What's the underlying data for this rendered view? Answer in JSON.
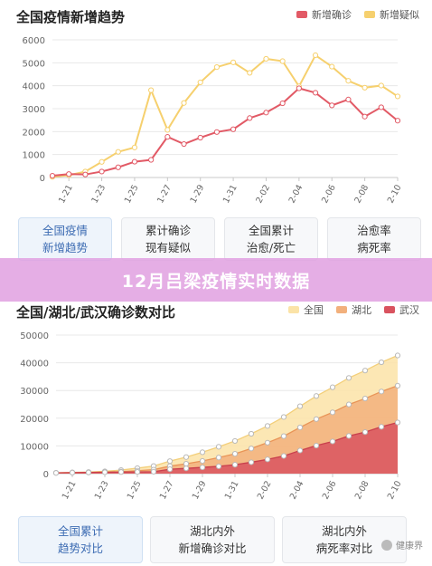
{
  "panel1": {
    "title": "全国疫情新增趋势",
    "legend": [
      {
        "label": "新增确诊",
        "color": "#e25a66"
      },
      {
        "label": "新增疑似",
        "color": "#f6d06e"
      }
    ],
    "tabs": [
      {
        "line1": "全国疫情",
        "line2": "新增趋势",
        "active": true
      },
      {
        "line1": "累计确诊",
        "line2": "现有疑似",
        "active": false
      },
      {
        "line1": "全国累计",
        "line2": "治愈/死亡",
        "active": false
      },
      {
        "line1": "治愈率",
        "line2": "病死率",
        "active": false
      }
    ]
  },
  "banner": {
    "text": "12月吕梁疫情实时数据"
  },
  "panel2": {
    "title": "全国/湖北/武汉确诊数对比",
    "legend": [
      {
        "label": "全国",
        "color": "#fbe3a7"
      },
      {
        "label": "湖北",
        "color": "#f2b07c"
      },
      {
        "label": "武汉",
        "color": "#d9535f"
      }
    ],
    "tabs": [
      {
        "line1": "全国累计",
        "line2": "趋势对比",
        "active": true
      },
      {
        "line1": "湖北内外",
        "line2": "新增确诊对比",
        "active": false
      },
      {
        "line1": "湖北内外",
        "line2": "病死率对比",
        "active": false
      }
    ]
  },
  "watermark": {
    "text": "健康界"
  },
  "chart_data": [
    {
      "type": "line",
      "title": "全国疫情新增趋势",
      "x": [
        "1-20",
        "1-21",
        "1-22",
        "1-23",
        "1-24",
        "1-25",
        "1-26",
        "1-27",
        "1-28",
        "1-29",
        "1-30",
        "1-31",
        "2-01",
        "2-02",
        "2-03",
        "2-04",
        "2-05",
        "2-06",
        "2-07",
        "2-08",
        "2-09",
        "2-10"
      ],
      "x_tick_labels": [
        "1-21",
        "1-23",
        "1-25",
        "1-27",
        "1-29",
        "1-31",
        "2-02",
        "2-04",
        "2-06",
        "2-08",
        "2-10"
      ],
      "ylim": [
        0,
        6000
      ],
      "y_ticks": [
        0,
        1000,
        2000,
        3000,
        4000,
        5000,
        6000
      ],
      "grid": true,
      "legend_position": "top-right",
      "series": [
        {
          "name": "新增确诊",
          "color": "#e25a66",
          "values": [
            77,
            149,
            131,
            259,
            444,
            688,
            769,
            1771,
            1459,
            1737,
            1982,
            2102,
            2590,
            2829,
            3235,
            3887,
            3694,
            3143,
            3399,
            2656,
            3062,
            2478
          ]
        },
        {
          "name": "新增疑似",
          "color": "#f6d06e",
          "values": [
            27,
            100,
            257,
            680,
            1118,
            1309,
            3806,
            2077,
            3248,
            4148,
            4812,
            5019,
            4562,
            5173,
            5072,
            3971,
            5328,
            4833,
            4214,
            3916,
            4008,
            3536
          ]
        }
      ]
    },
    {
      "type": "area",
      "title": "全国/湖北/武汉确诊数对比",
      "x": [
        "1-20",
        "1-21",
        "1-22",
        "1-23",
        "1-24",
        "1-25",
        "1-26",
        "1-27",
        "1-28",
        "1-29",
        "1-30",
        "1-31",
        "2-01",
        "2-02",
        "2-03",
        "2-04",
        "2-05",
        "2-06",
        "2-07",
        "2-08",
        "2-09",
        "2-10"
      ],
      "x_tick_labels": [
        "1-21",
        "1-23",
        "1-25",
        "1-27",
        "1-29",
        "1-31",
        "2-02",
        "2-04",
        "2-06",
        "2-08",
        "2-10"
      ],
      "ylim": [
        0,
        50000
      ],
      "y_ticks": [
        0,
        10000,
        20000,
        30000,
        40000,
        50000
      ],
      "grid": true,
      "legend_position": "top-right",
      "series": [
        {
          "name": "全国",
          "color": "#fbe3a7",
          "values": [
            291,
            440,
            571,
            830,
            1287,
            1975,
            2744,
            4515,
            5974,
            7711,
            9692,
            11791,
            14380,
            17205,
            20438,
            24324,
            28018,
            31161,
            34546,
            37198,
            40171,
            42638
          ]
        },
        {
          "name": "湖北",
          "color": "#f2b07c",
          "values": [
            270,
            375,
            444,
            549,
            729,
            1052,
            1423,
            2714,
            3554,
            4586,
            5806,
            7153,
            9074,
            11177,
            13522,
            16678,
            19665,
            22112,
            24953,
            27100,
            29631,
            31728
          ]
        },
        {
          "name": "武汉",
          "color": "#d9535f",
          "values": [
            258,
            363,
            425,
            495,
            572,
            618,
            698,
            1590,
            1905,
            2261,
            2639,
            3215,
            4109,
            5142,
            6384,
            8351,
            10117,
            11618,
            13603,
            14982,
            16902,
            18454
          ]
        }
      ]
    }
  ]
}
